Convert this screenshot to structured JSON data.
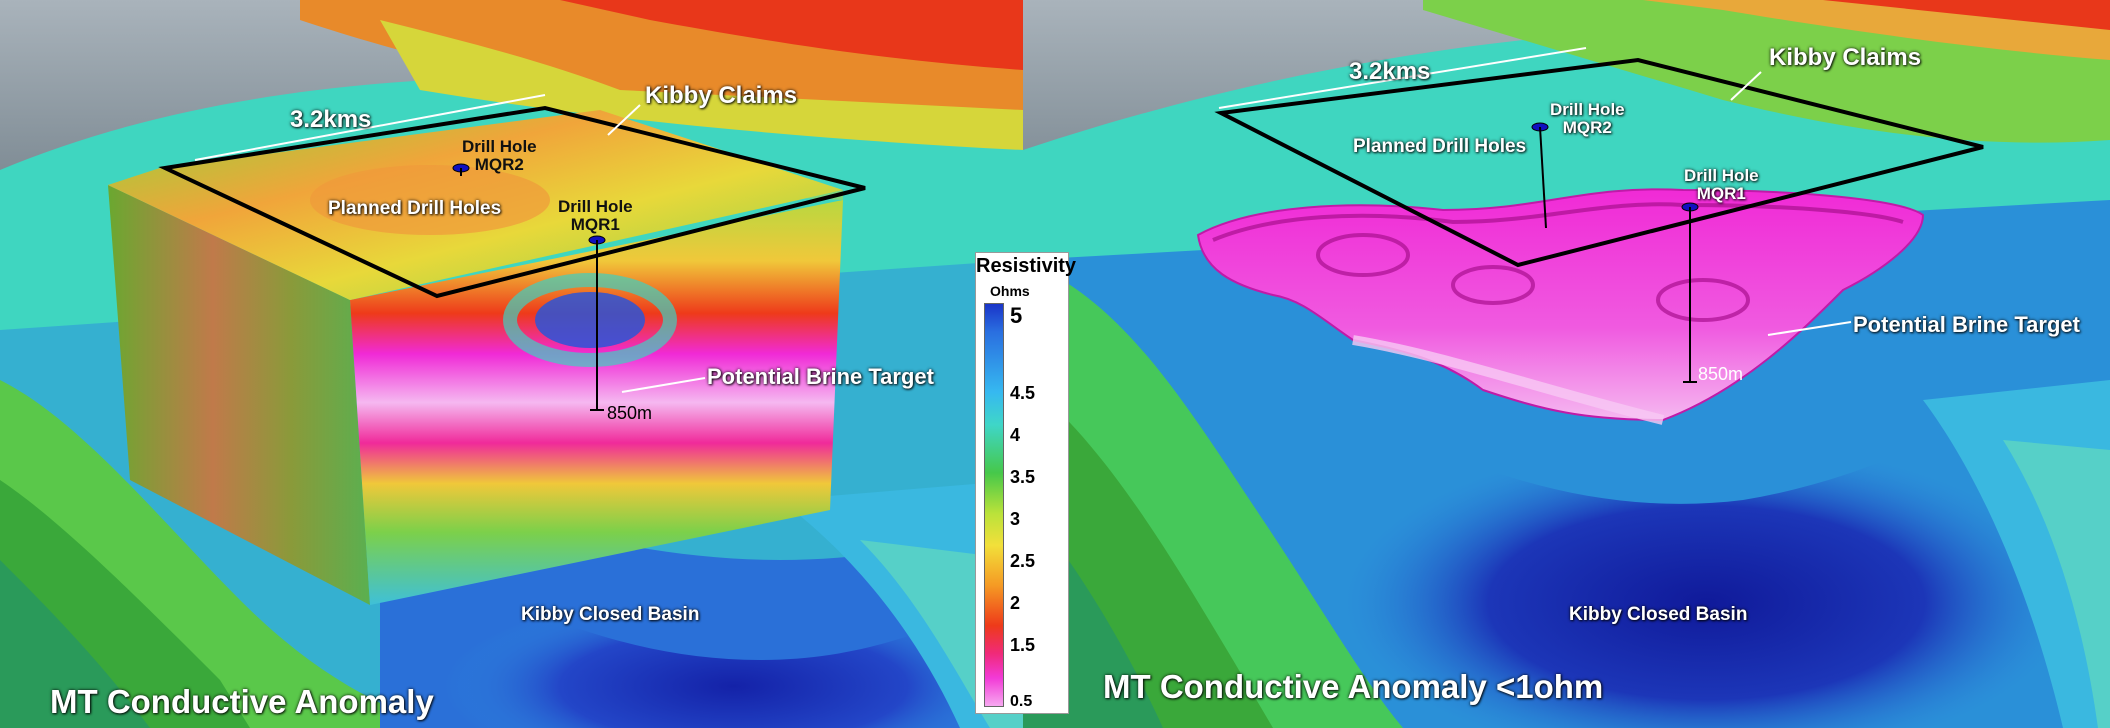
{
  "left_panel": {
    "title": "MT Conductive Anomaly",
    "distance": "3.2kms",
    "claims": "Kibby Claims",
    "planned": "Planned Drill Holes",
    "hole2": {
      "line1": "Drill Hole",
      "line2": "MQR2"
    },
    "hole1": {
      "line1": "Drill Hole",
      "line2": "MQR1"
    },
    "target": "Potential Brine Target",
    "depth": "850m",
    "basin": "Kibby Closed Basin"
  },
  "right_panel": {
    "title": "MT Conductive Anomaly <1ohm",
    "distance": "3.2kms",
    "claims": "Kibby Claims",
    "planned": "Planned Drill Holes",
    "hole2": {
      "line1": "Drill Hole",
      "line2": "MQR2"
    },
    "hole1": {
      "line1": "Drill Hole",
      "line2": "MQR1"
    },
    "target": "Potential Brine Target",
    "depth": "850m",
    "basin": "Kibby Closed Basin"
  },
  "legend": {
    "title": "Resistivity",
    "units": "Ohms",
    "ticks": [
      "5",
      "4.5",
      "4",
      "3.5",
      "3",
      "2.5",
      "2",
      "1.5",
      "0.5"
    ]
  },
  "colors": {
    "conductive": "#f02ad6",
    "resistive": "#1a35c8",
    "claims_outline": "#000000"
  }
}
